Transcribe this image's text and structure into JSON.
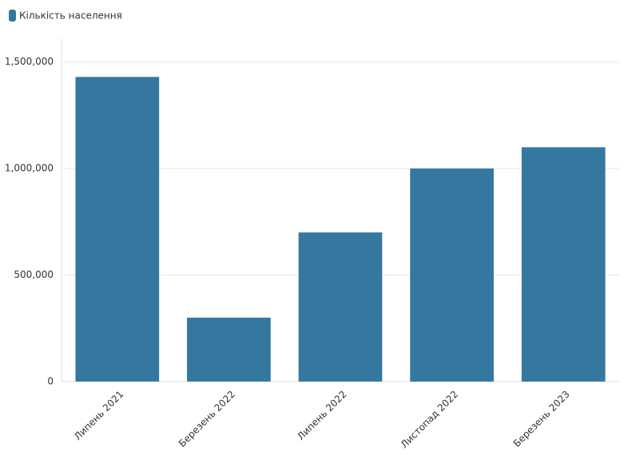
{
  "chart_data": {
    "type": "bar",
    "categories": [
      "Липень 2021",
      "Березень 2022",
      "Липень 2022",
      "Листопад 2022",
      "Березень 2023"
    ],
    "series": [
      {
        "name": "Кількість населення",
        "color": "#35789f",
        "values": [
          1430000,
          300000,
          700000,
          1000000,
          1100000
        ]
      }
    ],
    "ylim": [
      0,
      1600000
    ],
    "yticks": [
      0,
      {
        "value": 500000,
        "label": "500,000"
      },
      {
        "value": 1000000,
        "label": "1,000,000"
      },
      {
        "value": 1500000,
        "label": "1,500,000"
      }
    ],
    "grid": true,
    "legend": "top-left"
  }
}
